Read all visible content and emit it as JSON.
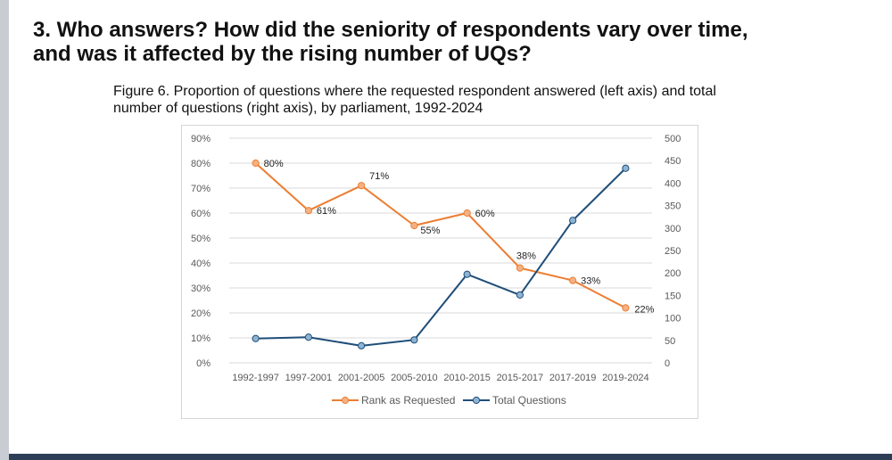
{
  "heading": "3. Who answers? How did the seniority of respondents vary over time, and was it affected by the rising number of UQs?",
  "caption": "Figure 6. Proportion of questions where the requested respondent answered (left axis) and total number of questions (right axis), by parliament, 1992-2024",
  "colors": {
    "rank": "#ed7d31",
    "rank_fill": "#f4b183",
    "total": "#1f4e79",
    "total_fill": "#8fb3d2",
    "grid": "#d9d9d9"
  },
  "chart_data": {
    "type": "line",
    "categories": [
      "1992-1997",
      "1997-2001",
      "2001-2005",
      "2005-2010",
      "2010-2015",
      "2015-2017",
      "2017-2019",
      "2019-2024"
    ],
    "series": [
      {
        "name": "Rank as Requested",
        "axis": "left",
        "values": [
          0.8,
          0.61,
          0.71,
          0.55,
          0.6,
          0.38,
          0.33,
          0.22
        ],
        "labels": [
          "80%",
          "61%",
          "71%",
          "55%",
          "60%",
          "38%",
          "33%",
          "22%"
        ]
      },
      {
        "name": "Total Questions",
        "axis": "right",
        "values": [
          54,
          57,
          38,
          51,
          197,
          151,
          317,
          433
        ]
      }
    ],
    "left_axis": {
      "ylim": [
        0,
        0.9
      ],
      "ticks": [
        0,
        0.1,
        0.2,
        0.3,
        0.4,
        0.5,
        0.6,
        0.7,
        0.8,
        0.9
      ],
      "tick_labels": [
        "0%",
        "10%",
        "20%",
        "30%",
        "40%",
        "50%",
        "60%",
        "70%",
        "80%",
        "90%"
      ]
    },
    "right_axis": {
      "ylim": [
        0,
        500
      ],
      "ticks": [
        0,
        50,
        100,
        150,
        200,
        250,
        300,
        350,
        400,
        450,
        500
      ],
      "tick_labels": [
        "0",
        "50",
        "100",
        "150",
        "200",
        "250",
        "300",
        "350",
        "400",
        "450",
        "500"
      ]
    },
    "grid": true,
    "legend": "bottom"
  }
}
